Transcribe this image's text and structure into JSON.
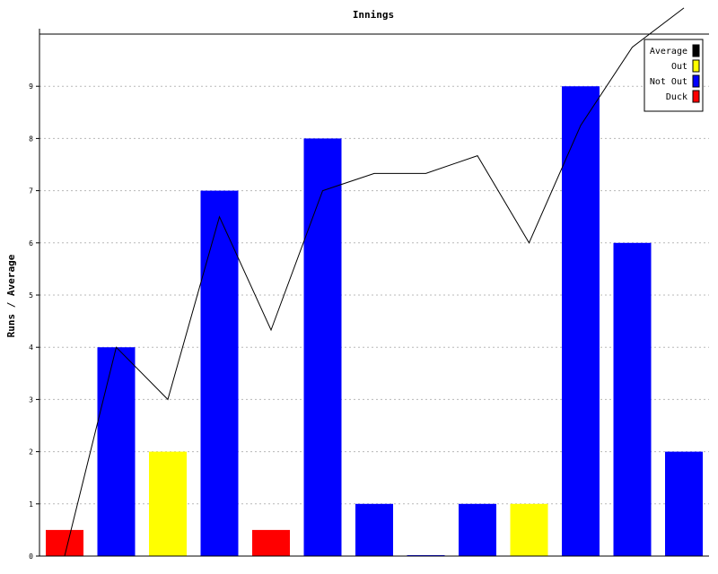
{
  "chart_data": {
    "type": "bar",
    "title": "Innings",
    "xlabel": "",
    "ylabel": "Runs / Average",
    "ylim": [
      0,
      10
    ],
    "yticks": [
      0,
      1,
      2,
      3,
      4,
      5,
      6,
      7,
      8,
      9
    ],
    "grid": true,
    "legend_position": "top-right",
    "legend": [
      {
        "name": "Average",
        "color": "#000000"
      },
      {
        "name": "Out",
        "color": "#ffff00"
      },
      {
        "name": "Not Out",
        "color": "#0000ff"
      },
      {
        "name": "Duck",
        "color": "#ff0000"
      }
    ],
    "innings": [
      {
        "runs": 0.5,
        "kind": "Duck"
      },
      {
        "runs": 4,
        "kind": "Not Out"
      },
      {
        "runs": 2,
        "kind": "Out"
      },
      {
        "runs": 7,
        "kind": "Not Out"
      },
      {
        "runs": 0.5,
        "kind": "Duck"
      },
      {
        "runs": 8,
        "kind": "Not Out"
      },
      {
        "runs": 1,
        "kind": "Not Out"
      },
      {
        "runs": 0,
        "kind": "Not Out"
      },
      {
        "runs": 1,
        "kind": "Not Out"
      },
      {
        "runs": 1,
        "kind": "Out"
      },
      {
        "runs": 9,
        "kind": "Not Out"
      },
      {
        "runs": 6,
        "kind": "Not Out"
      },
      {
        "runs": 2,
        "kind": "Not Out"
      }
    ],
    "average": [
      0,
      4,
      3,
      6.5,
      4.33,
      7,
      7.33,
      7.33,
      7.67,
      6,
      8.25,
      9.75,
      10.5
    ]
  }
}
